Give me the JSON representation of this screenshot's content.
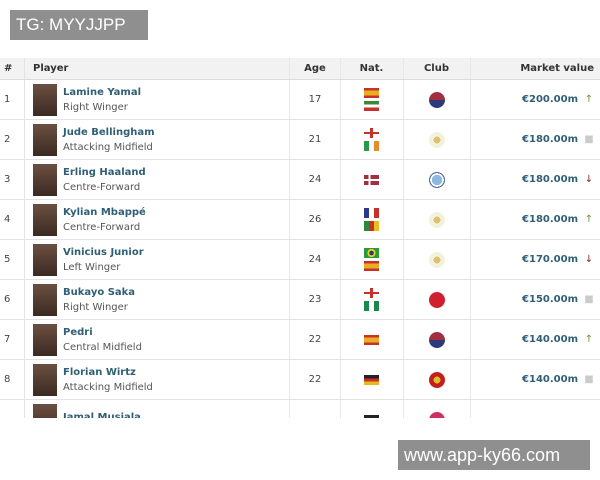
{
  "watermarks": {
    "top": "TG: MYYJJPP",
    "bottom": "www.app-ky66.com"
  },
  "columns": {
    "rank": "#",
    "player": "Player",
    "age": "Age",
    "nat": "Nat.",
    "club": "Club",
    "value": "Market value"
  },
  "colors": {
    "up": "#6a9a2a",
    "down": "#8a2030",
    "same": "#cccccc",
    "link": "#2f5f75"
  },
  "rows": [
    {
      "rank": "1",
      "name": "Lamine Yamal",
      "position": "Right Winger",
      "age": "17",
      "flags": [
        "spain",
        "equatorial-guinea"
      ],
      "club": "fc-barcelona",
      "value": "€200.00m",
      "trend": "up"
    },
    {
      "rank": "2",
      "name": "Jude Bellingham",
      "position": "Attacking Midfield",
      "age": "21",
      "flags": [
        "england",
        "ireland"
      ],
      "club": "real-madrid",
      "value": "€180.00m",
      "trend": "same"
    },
    {
      "rank": "3",
      "name": "Erling Haaland",
      "position": "Centre-Forward",
      "age": "24",
      "flags": [
        "norway"
      ],
      "club": "manchester-city",
      "value": "€180.00m",
      "trend": "down"
    },
    {
      "rank": "4",
      "name": "Kylian Mbappé",
      "position": "Centre-Forward",
      "age": "26",
      "flags": [
        "france",
        "cameroon"
      ],
      "club": "real-madrid",
      "value": "€180.00m",
      "trend": "up"
    },
    {
      "rank": "5",
      "name": "Vinicius Junior",
      "position": "Left Winger",
      "age": "24",
      "flags": [
        "brazil",
        "spain"
      ],
      "club": "real-madrid",
      "value": "€170.00m",
      "trend": "down"
    },
    {
      "rank": "6",
      "name": "Bukayo Saka",
      "position": "Right Winger",
      "age": "23",
      "flags": [
        "england",
        "nigeria"
      ],
      "club": "arsenal",
      "value": "€150.00m",
      "trend": "same"
    },
    {
      "rank": "7",
      "name": "Pedri",
      "position": "Central Midfield",
      "age": "22",
      "flags": [
        "spain"
      ],
      "club": "fc-barcelona",
      "value": "€140.00m",
      "trend": "up"
    },
    {
      "rank": "8",
      "name": "Florian Wirtz",
      "position": "Attacking Midfield",
      "age": "22",
      "flags": [
        "germany"
      ],
      "club": "bayer-leverkusen",
      "value": "€140.00m",
      "trend": "same"
    },
    {
      "rank": "",
      "name": "Jamal Musiala",
      "position": "",
      "age": "",
      "flags": [
        "germany"
      ],
      "club": "bayern-munich",
      "value": "",
      "trend": "same"
    }
  ]
}
